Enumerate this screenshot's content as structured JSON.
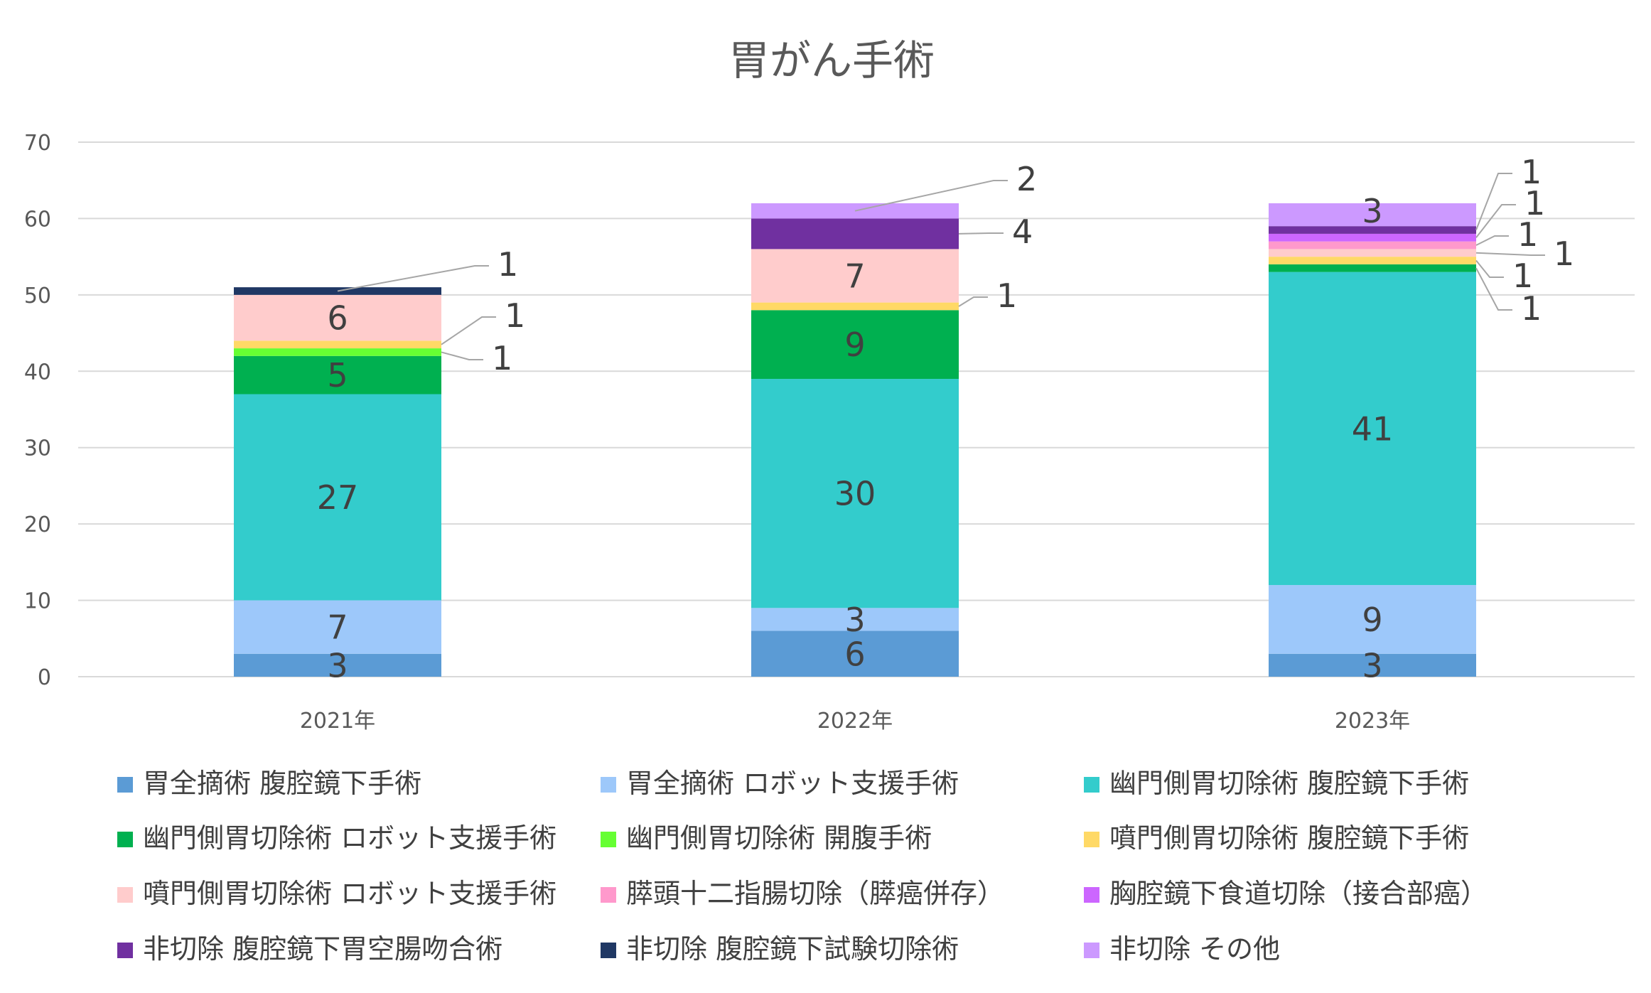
{
  "chart_data": {
    "type": "bar",
    "stacked": true,
    "title": "胃がん手術",
    "categories": [
      "2021年",
      "2022年",
      "2023年"
    ],
    "ylim": [
      0,
      70
    ],
    "yticks": [
      "0",
      "10",
      "20",
      "30",
      "40",
      "50",
      "60",
      "70"
    ],
    "grid": true,
    "legend_position": "bottom",
    "series": [
      {
        "name": "胃全摘術 腹腔鏡下手術",
        "color": "#5b9bd5",
        "values": [
          3,
          6,
          3
        ]
      },
      {
        "name": "胃全摘術 ロボット支援手術",
        "color": "#9dc8fa",
        "values": [
          7,
          3,
          9
        ]
      },
      {
        "name": "幽門側胃切除術 腹腔鏡下手術",
        "color": "#33cccc",
        "values": [
          27,
          30,
          41
        ]
      },
      {
        "name": "幽門側胃切除術 ロボット支援手術",
        "color": "#00b050",
        "values": [
          5,
          9,
          1
        ]
      },
      {
        "name": "幽門側胃切除術 開腹手術",
        "color": "#66ff33",
        "values": [
          1,
          0,
          0
        ]
      },
      {
        "name": "噴門側胃切除術 腹腔鏡下手術",
        "color": "#ffd966",
        "values": [
          1,
          1,
          1
        ]
      },
      {
        "name": "噴門側胃切除術 ロボット支援手術",
        "color": "#ffcccc",
        "values": [
          6,
          7,
          1
        ]
      },
      {
        "name": "膵頭十二指腸切除（膵癌併存）",
        "color": "#ff99cc",
        "values": [
          0,
          0,
          1
        ]
      },
      {
        "name": "胸腔鏡下食道切除（接合部癌）",
        "color": "#cc66ff",
        "values": [
          0,
          0,
          1
        ]
      },
      {
        "name": "非切除 腹腔鏡下胃空腸吻合術",
        "color": "#7030a0",
        "values": [
          0,
          4,
          1
        ]
      },
      {
        "name": "非切除 腹腔鏡下試験切除術",
        "color": "#203864",
        "values": [
          1,
          0,
          0
        ]
      },
      {
        "name": "非切除 その他",
        "color": "#cc99ff",
        "values": [
          0,
          2,
          3
        ]
      }
    ],
    "callouts": [
      {
        "cat": 0,
        "series": 10,
        "text": "1"
      },
      {
        "cat": 0,
        "series": 5,
        "text": "1"
      },
      {
        "cat": 0,
        "series": 4,
        "text": "1"
      },
      {
        "cat": 1,
        "series": 11,
        "text": "2"
      },
      {
        "cat": 1,
        "series": 9,
        "text": "4"
      },
      {
        "cat": 1,
        "series": 5,
        "text": "1"
      },
      {
        "cat": 2,
        "series": 9,
        "text": "1"
      },
      {
        "cat": 2,
        "series": 8,
        "text": "1"
      },
      {
        "cat": 2,
        "series": 7,
        "text": "1"
      },
      {
        "cat": 2,
        "series": 6,
        "text": "1"
      },
      {
        "cat": 2,
        "series": 5,
        "text": "1"
      },
      {
        "cat": 2,
        "series": 3,
        "text": "1"
      }
    ]
  }
}
